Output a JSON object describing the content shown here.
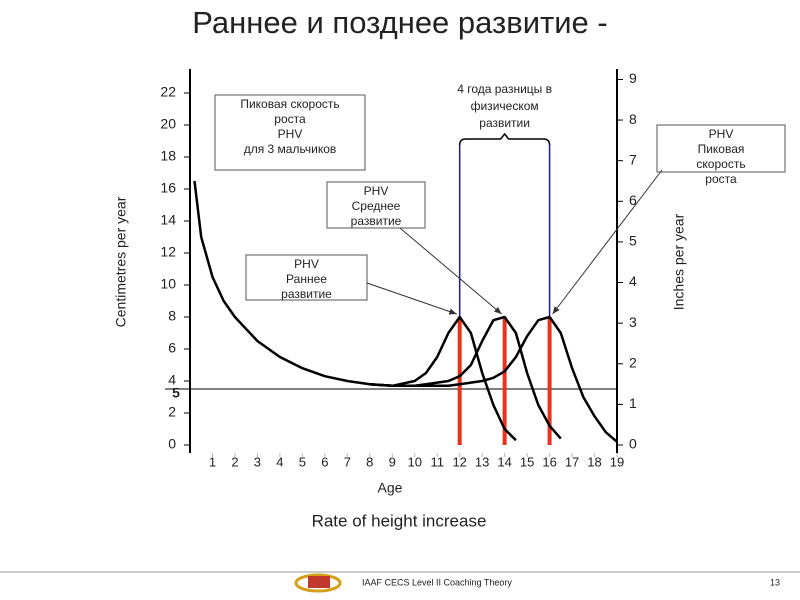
{
  "slide_title": "Раннее и позднее развитие -",
  "chart_data": {
    "type": "line",
    "caption": "Rate of height increase",
    "x_label": "Age",
    "y_label": "Centimetres per year",
    "y2_label": "Inches per year",
    "x": [
      0.2,
      0.5,
      1,
      1.5,
      2,
      3,
      4,
      5,
      6,
      7,
      8,
      9,
      10,
      10.5,
      11,
      11.5,
      12,
      12.5,
      13,
      13.5,
      14,
      14.5,
      15,
      15.5,
      16,
      16.5,
      17,
      17.5,
      18,
      18.5,
      19
    ],
    "series": [
      {
        "color": "#000000",
        "values": [
          16.5,
          13,
          10.5,
          9,
          8,
          6.5,
          5.5,
          4.8,
          4.3,
          4,
          3.8,
          3.7,
          4,
          4.5,
          5.5,
          7,
          8,
          7,
          4.5,
          2.5,
          1,
          0.3,
          null,
          null,
          null,
          null,
          null,
          null,
          null,
          null,
          null
        ]
      },
      {
        "color": "#000000",
        "values": [
          null,
          null,
          null,
          null,
          null,
          null,
          null,
          null,
          null,
          null,
          3.8,
          3.7,
          3.7,
          3.8,
          3.9,
          4,
          4.3,
          5,
          6.5,
          7.8,
          8,
          7,
          4.5,
          2.5,
          1.2,
          0.4,
          null,
          null,
          null,
          null,
          null
        ]
      },
      {
        "color": "#000000",
        "values": [
          null,
          null,
          null,
          null,
          null,
          null,
          null,
          null,
          null,
          null,
          3.8,
          3.7,
          3.7,
          3.7,
          3.7,
          3.7,
          3.8,
          3.9,
          4,
          4.2,
          4.6,
          5.5,
          6.8,
          7.8,
          8,
          7,
          4.8,
          3,
          1.8,
          0.8,
          0.2
        ]
      }
    ],
    "xlim": [
      0,
      19
    ],
    "xticks": [
      1,
      2,
      3,
      4,
      5,
      6,
      7,
      8,
      9,
      10,
      11,
      12,
      13,
      14,
      15,
      16,
      17,
      18,
      19
    ],
    "ylim": [
      0,
      23
    ],
    "yticks": [
      0,
      2,
      4,
      6,
      8,
      10,
      12,
      14,
      16,
      18,
      20,
      22
    ],
    "y2lim": [
      0,
      9.06
    ],
    "y2ticks": [
      0,
      1,
      2,
      3,
      4,
      5,
      6,
      7,
      8,
      9
    ],
    "reference_line": {
      "value": 3.5,
      "label": "5"
    },
    "peak_lines": {
      "color": "#e8341c",
      "ages": [
        12,
        14,
        16
      ],
      "peak": 8
    },
    "bracket": {
      "color": "#1a1aa8",
      "from": 12,
      "to": 16,
      "lines": [
        "4 года разницы в",
        "физическом",
        "развитии"
      ]
    },
    "annotations": [
      {
        "lines": [
          "Пиковая скорость",
          "роста",
          "PHV",
          "для 3 мальчиков"
        ]
      },
      {
        "lines": [
          "PHV",
          "Среднее",
          "развитие"
        ]
      },
      {
        "lines": [
          "PHV",
          "Раннее",
          "развитие"
        ]
      },
      {
        "lines": [
          "PHV",
          "Пиковая",
          "скорость",
          "роста"
        ]
      }
    ]
  },
  "footer": {
    "text": "IAAF CECS Level II Coaching Theory",
    "page": "13"
  }
}
